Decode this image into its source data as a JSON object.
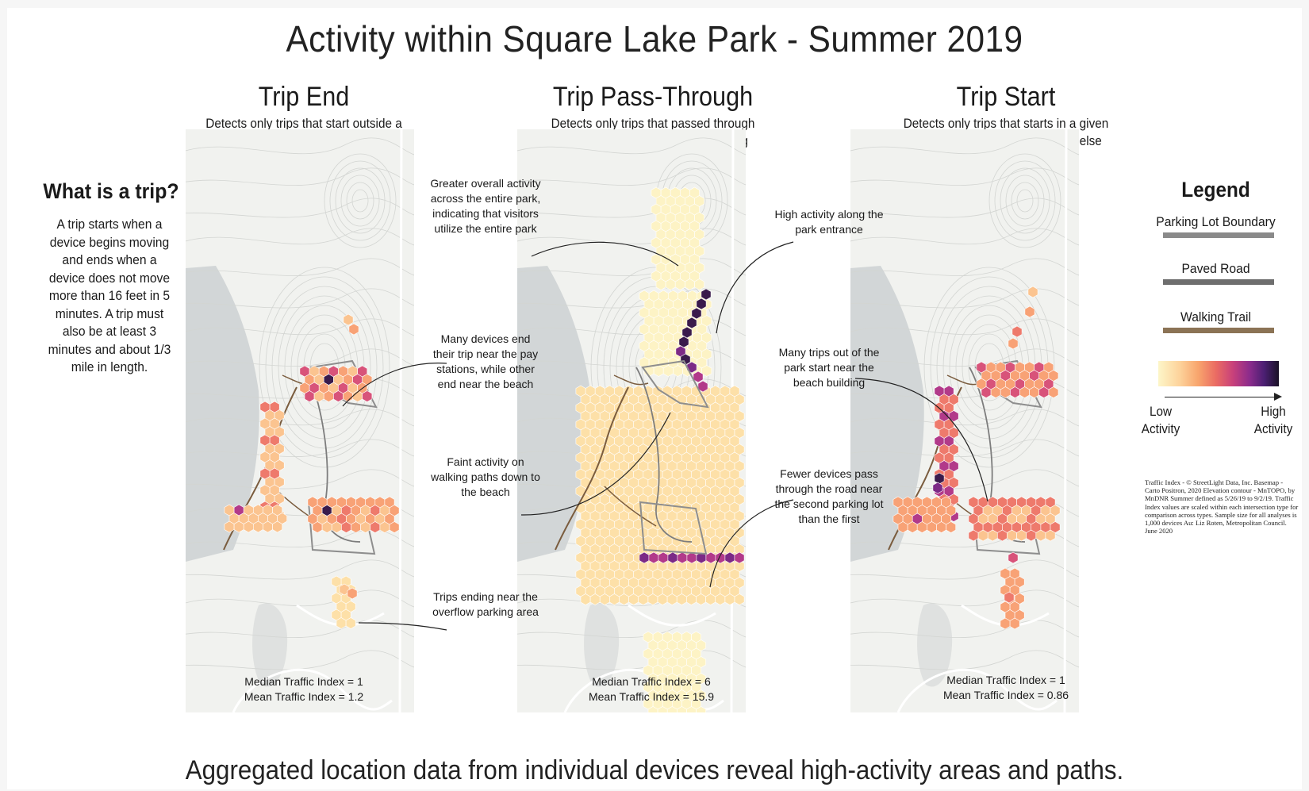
{
  "title": "Activity within Square Lake Park - Summer 2019",
  "footer": "Aggregated location data from individual devices reveal high-activity areas and paths.",
  "sidebar": {
    "heading": "What is a trip?",
    "text": "A trip starts when a device begins moving and ends when a device does not move more than 16 feet in 5 minutes. A trip must also be at least 3 minutes and about 1/3 mile in length."
  },
  "maps": [
    {
      "title": "Trip End",
      "description": "Detects only trips that start outside a given hexa-gon, and end in a given hexagon",
      "median": "Median Traffic Index = 1",
      "mean": "Mean Traffic Index = 1.2"
    },
    {
      "title": "Trip Pass-Through",
      "description": "Detects only trips that passed through the given hexagon without stopping",
      "median": "Median Traffic Index = 6",
      "mean": "Mean Traffic Index = 15.9"
    },
    {
      "title": "Trip Start",
      "description": "Detects only trips that starts in a given hexagon and ends somewhere else",
      "median": "Median Traffic Index = 1",
      "mean": "Mean Traffic Index = 0.86"
    }
  ],
  "annotations": {
    "greater_activity": "Greater overall activity across the entire park, indicating that visitors utilize the entire park",
    "many_devices_end": "Many devices end their trip near the pay stations, while other end near the beach",
    "faint_activity": "Faint activity on walking paths down to the beach",
    "trips_ending": "Trips ending near the overflow parking area",
    "high_activity": "High activity along the park entrance",
    "fewer_devices": "Fewer devices pass through the road near the second parking lot than the first",
    "many_trips_out": "Many trips out of the park start near the beach building"
  },
  "legend": {
    "title": "Legend",
    "items": [
      {
        "label": "Parking Lot Boundary",
        "color": "#8a8a8a"
      },
      {
        "label": "Paved Road",
        "color": "#6e6e6e"
      },
      {
        "label": "Walking Trail",
        "color": "#8b7355"
      }
    ],
    "low": "Low Activity",
    "high": "High Activity"
  },
  "credits": "Traffic Index - © StreetLight Data, Inc. Basemap - Carto Positron, 2020 Elevation contour - MnTOPO, by MnDNR Summer defined as 5/26/19 to 9/2/19. Traffic Index values are scaled within each intersection type for comparison across types. Sample size for all analyses is 1,000 devices Au: Liz Roten, Metropolitan Council. June 2020"
}
